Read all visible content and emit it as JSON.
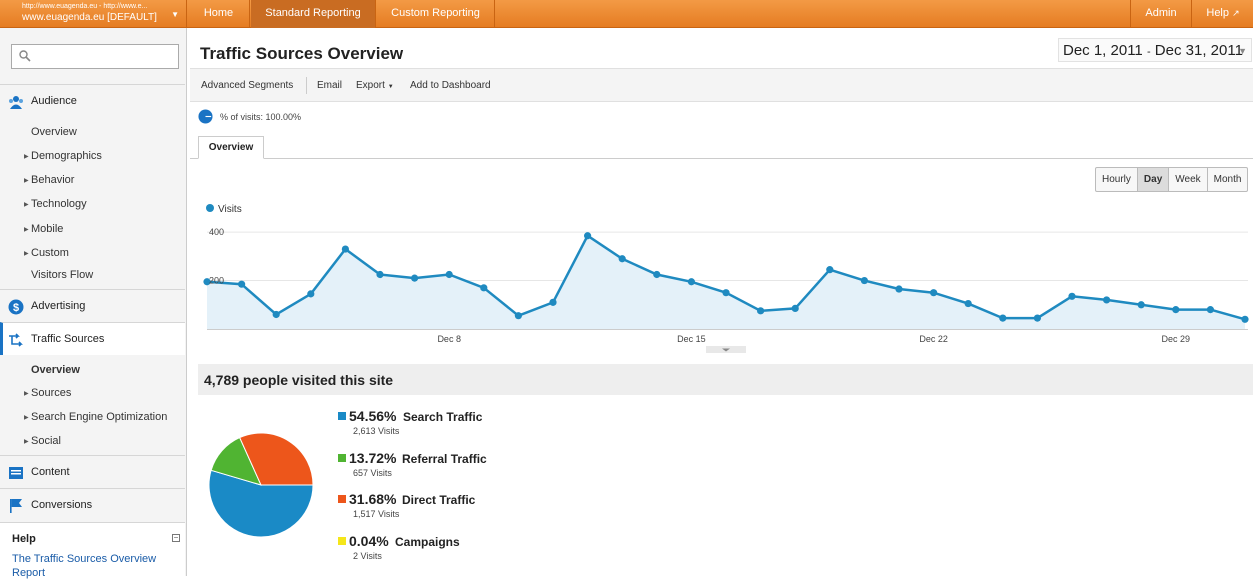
{
  "account": {
    "urls": "http://www.euagenda.eu - http://www.e...",
    "profile": "www.euagenda.eu [DEFAULT]"
  },
  "nav": {
    "home": "Home",
    "standard_reporting": "Standard Reporting",
    "custom_reporting": "Custom Reporting",
    "admin": "Admin",
    "help": "Help"
  },
  "sidebar": {
    "search_placeholder": "",
    "audience": {
      "label": "Audience",
      "items": [
        "Overview",
        "Demographics",
        "Behavior",
        "Technology",
        "Mobile",
        "Custom",
        "Visitors Flow"
      ]
    },
    "advertising": "Advertising",
    "traffic_sources": {
      "label": "Traffic Sources",
      "items": [
        "Overview",
        "Sources",
        "Search Engine Optimization",
        "Social"
      ]
    },
    "content": "Content",
    "conversions": "Conversions",
    "help": {
      "title": "Help",
      "link": "The Traffic Sources Overview Report"
    }
  },
  "main": {
    "title": "Traffic Sources Overview",
    "date_start": "Dec 1, 2011",
    "date_sep": "-",
    "date_end": "Dec 31, 2011",
    "toolbar": {
      "advanced_segments": "Advanced Segments",
      "email": "Email",
      "export": "Export",
      "add_to_dashboard": "Add to Dashboard"
    },
    "segment_text": "% of visits: 100.00%",
    "tab": "Overview",
    "granularity": [
      "Hourly",
      "Day",
      "Week",
      "Month"
    ],
    "granularity_selected": "Day",
    "visitors_summary": "4,789 people visited this site"
  },
  "colors": {
    "accent_orange": "#e9832b",
    "series_blue": "#1f8ac0",
    "search": "#1a8ac6",
    "referral": "#50b432",
    "direct": "#ed561b",
    "campaigns": "#f5e61a"
  },
  "chart_data": [
    {
      "type": "line",
      "legend": "Visits",
      "x_tick_labels": [
        "Dec 8",
        "Dec 15",
        "Dec 22",
        "Dec 29"
      ],
      "y_tick_labels": [
        "400",
        "200"
      ],
      "ylim": [
        0,
        450
      ],
      "series": [
        {
          "name": "Visits",
          "x": [
            "Dec 1",
            "Dec 2",
            "Dec 3",
            "Dec 4",
            "Dec 5",
            "Dec 6",
            "Dec 7",
            "Dec 8",
            "Dec 9",
            "Dec 10",
            "Dec 11",
            "Dec 12",
            "Dec 13",
            "Dec 14",
            "Dec 15",
            "Dec 16",
            "Dec 17",
            "Dec 18",
            "Dec 19",
            "Dec 20",
            "Dec 21",
            "Dec 22",
            "Dec 23",
            "Dec 24",
            "Dec 25",
            "Dec 26",
            "Dec 27",
            "Dec 28",
            "Dec 29",
            "Dec 30",
            "Dec 31"
          ],
          "values": [
            195,
            185,
            60,
            145,
            330,
            225,
            210,
            225,
            170,
            55,
            110,
            385,
            290,
            225,
            195,
            150,
            75,
            85,
            245,
            200,
            165,
            150,
            105,
            45,
            45,
            135,
            120,
            100,
            80,
            80,
            40
          ]
        }
      ]
    },
    {
      "type": "pie",
      "slices": [
        {
          "label": "Search Traffic",
          "percent": "54.56%",
          "value": 54.56,
          "visits": "2,613 Visits",
          "color": "#1a8ac6"
        },
        {
          "label": "Referral Traffic",
          "percent": "13.72%",
          "value": 13.72,
          "visits": "657 Visits",
          "color": "#50b432"
        },
        {
          "label": "Direct Traffic",
          "percent": "31.68%",
          "value": 31.68,
          "visits": "1,517 Visits",
          "color": "#ed561b"
        },
        {
          "label": "Campaigns",
          "percent": "0.04%",
          "value": 0.04,
          "visits": "2 Visits",
          "color": "#f5e61a"
        }
      ]
    }
  ]
}
